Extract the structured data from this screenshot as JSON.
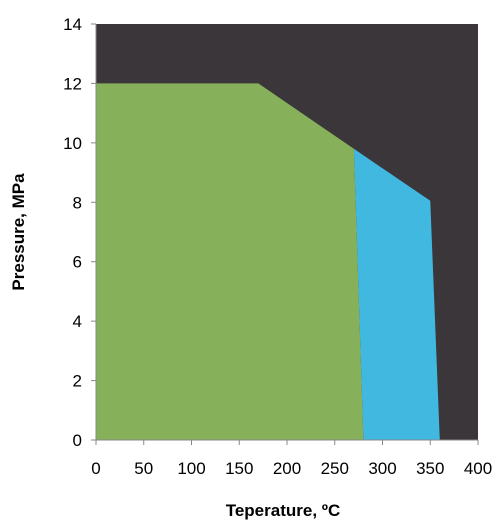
{
  "chart_data": {
    "type": "area",
    "xlabel": "Teperature, ºC",
    "ylabel": "Pressure, MPa",
    "xlim": [
      0,
      400
    ],
    "ylim": [
      0,
      14
    ],
    "xticks": [
      "0",
      "50",
      "100",
      "150",
      "200",
      "250",
      "300",
      "350",
      "400"
    ],
    "yticks": [
      "0",
      "2",
      "4",
      "6",
      "8",
      "10",
      "12",
      "14"
    ],
    "grid": false,
    "legend": "none",
    "regions": [
      {
        "color": "#3a3639",
        "points": [
          [
            0,
            0
          ],
          [
            0,
            14
          ],
          [
            400,
            14
          ],
          [
            400,
            0
          ]
        ]
      },
      {
        "color": "#41b8e0",
        "points": [
          [
            270,
            9.8
          ],
          [
            350,
            8.05
          ],
          [
            360,
            0
          ],
          [
            280,
            0
          ]
        ]
      },
      {
        "color": "#87b05b",
        "points": [
          [
            0,
            0
          ],
          [
            0,
            12
          ],
          [
            170,
            12
          ],
          [
            270,
            9.8
          ],
          [
            280,
            0
          ]
        ]
      }
    ]
  }
}
